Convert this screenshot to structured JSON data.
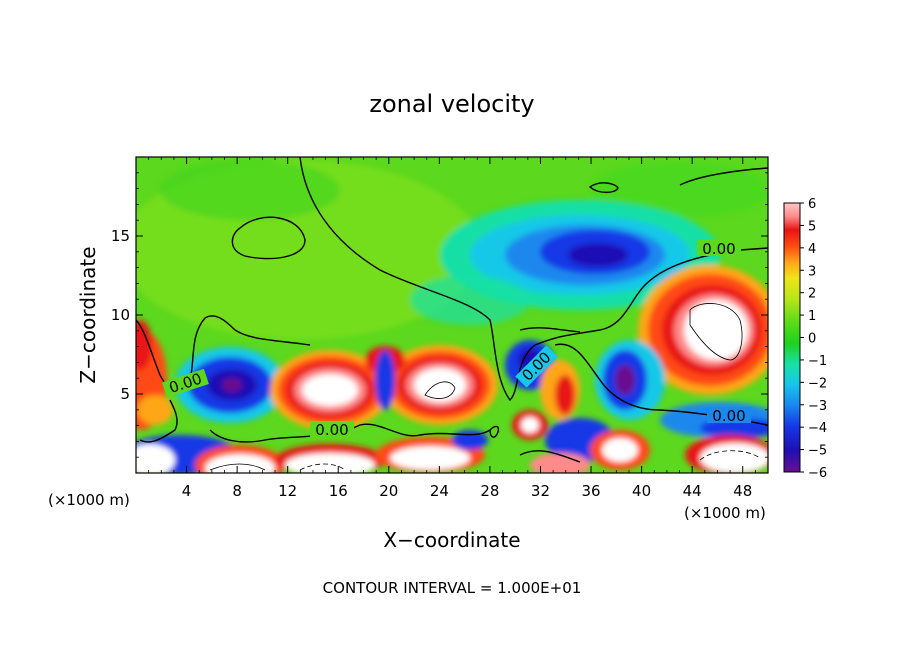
{
  "chart_data": {
    "type": "heatmap",
    "title": "zonal velocity",
    "xlabel": "X−coordinate",
    "ylabel": "Z−coordinate",
    "x_unit_left": "(×1000 m)",
    "x_unit_right": "(×1000 m)",
    "xlim": [
      0,
      50
    ],
    "ylim": [
      0,
      20
    ],
    "x_ticks": [
      4,
      8,
      12,
      16,
      20,
      24,
      28,
      32,
      36,
      40,
      44,
      48
    ],
    "y_ticks": [
      5,
      10,
      15
    ],
    "footer": "CONTOUR INTERVAL = 1.000E+01",
    "contour_label": "0.00",
    "colorbar": {
      "min": -6,
      "max": 6,
      "ticks": [
        6,
        5,
        4,
        3,
        2,
        1,
        0,
        -1,
        -2,
        -3,
        -4,
        -5,
        -6
      ],
      "colors": [
        "#6a0f8e",
        "#1f0fb5",
        "#1538e6",
        "#1a88ee",
        "#17c8e8",
        "#19e0a6",
        "#1ed21e",
        "#5fdc19",
        "#b4e61a",
        "#f0e41a",
        "#ffa619",
        "#ff4a14",
        "#e81414",
        "#ff8a8a",
        "#ffc8c8"
      ]
    },
    "features": [
      {
        "x": 37,
        "z": 14,
        "value": -4
      },
      {
        "x": 46,
        "z": 9.5,
        "value": 7
      },
      {
        "x": 22,
        "z": 5.3,
        "value": 7
      },
      {
        "x": 16,
        "z": 5.2,
        "value": 6
      },
      {
        "x": 9,
        "z": 5,
        "value": -5
      }
    ]
  }
}
